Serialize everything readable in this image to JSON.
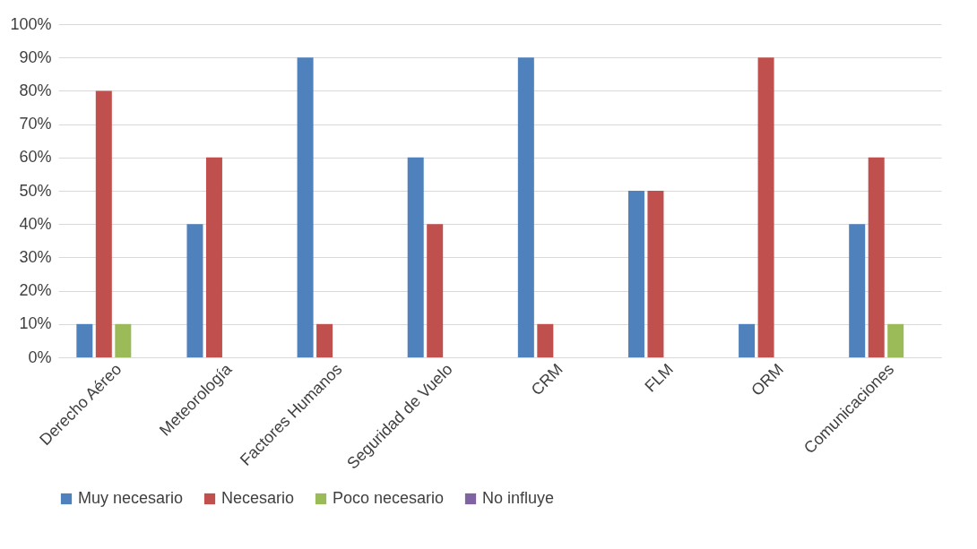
{
  "chart_data": {
    "type": "bar",
    "categories": [
      "Derecho Aéreo",
      "Meteorología",
      "Factores Humanos",
      "Seguridad de Vuelo",
      "CRM",
      "FLM",
      "ORM",
      "Comunicaciones"
    ],
    "series": [
      {
        "name": "Muy necesario",
        "color": "#4f81bd",
        "values": [
          10,
          40,
          90,
          60,
          90,
          50,
          10,
          40
        ]
      },
      {
        "name": "Necesario",
        "color": "#c0504d",
        "values": [
          80,
          60,
          10,
          40,
          10,
          50,
          90,
          60
        ]
      },
      {
        "name": "Poco necesario",
        "color": "#9bbb59",
        "values": [
          10,
          0,
          0,
          0,
          0,
          0,
          0,
          10
        ]
      },
      {
        "name": "No influye",
        "color": "#8064a2",
        "values": [
          0,
          0,
          0,
          0,
          0,
          0,
          0,
          0
        ]
      }
    ],
    "ylim": [
      0,
      100
    ],
    "yticks": [
      {
        "value": 0,
        "label": "0%"
      },
      {
        "value": 10,
        "label": "10%"
      },
      {
        "value": 20,
        "label": "20%"
      },
      {
        "value": 30,
        "label": "30%"
      },
      {
        "value": 40,
        "label": "40%"
      },
      {
        "value": 50,
        "label": "50%"
      },
      {
        "value": 60,
        "label": "60%"
      },
      {
        "value": 70,
        "label": "70%"
      },
      {
        "value": 80,
        "label": "80%"
      },
      {
        "value": 90,
        "label": "90%"
      },
      {
        "value": 100,
        "label": "100%"
      }
    ],
    "grid": "y",
    "legend": "bottom"
  }
}
